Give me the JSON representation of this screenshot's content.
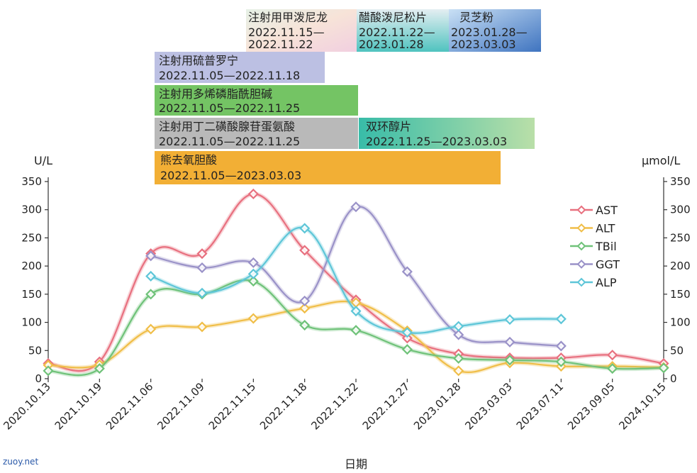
{
  "watermark": "zuoy.net",
  "chart_data": {
    "type": "line",
    "xlabel": "日期",
    "ylabel_left": "U/L",
    "ylabel_right": "μmol/L",
    "ylim": [
      0,
      350
    ],
    "yticks": [
      0,
      50,
      100,
      150,
      200,
      250,
      300,
      350
    ],
    "categories": [
      "2020.10.13",
      "2021.10.19",
      "2022.11.06",
      "2022.11.09",
      "2022.11.15",
      "2022.11.18",
      "2022.11.22",
      "2022.12.27",
      "2023.01.28",
      "2023.03.03",
      "2023.07.11",
      "2023.09.05",
      "2024.10.15"
    ],
    "legend_position": "right",
    "series": [
      {
        "name": "AST",
        "color": "#e8707f",
        "values": [
          27,
          30,
          222,
          222,
          328,
          228,
          140,
          72,
          44,
          37,
          37,
          42,
          27
        ]
      },
      {
        "name": "ALT",
        "color": "#f0be48",
        "values": [
          24,
          25,
          88,
          92,
          107,
          125,
          135,
          85,
          14,
          28,
          22,
          22,
          20
        ]
      },
      {
        "name": "TBil",
        "color": "#6fc279",
        "values": [
          14,
          18,
          150,
          150,
          173,
          95,
          86,
          52,
          36,
          33,
          30,
          18,
          19
        ]
      },
      {
        "name": "GGT",
        "color": "#9a92c8",
        "values": [
          null,
          null,
          218,
          197,
          206,
          138,
          305,
          190,
          78,
          65,
          58,
          null,
          null
        ]
      },
      {
        "name": "ALP",
        "color": "#5ec6d8",
        "values": [
          null,
          null,
          182,
          152,
          186,
          267,
          120,
          82,
          93,
          105,
          106,
          null,
          null
        ]
      }
    ],
    "medications": [
      {
        "name": "注射用甲泼尼龙",
        "date": "2022.11.15—2022.11.22",
        "date_line1": "2022.11.15—",
        "date_line2": "2022.11.22"
      },
      {
        "name": "醋酸泼尼松片",
        "date": "2022.11.22—2023.01.28",
        "date_line1": "2022.11.22—",
        "date_line2": "2023.01.28"
      },
      {
        "name": "灵芝粉",
        "date": "2023.01.28—2023.03.03",
        "date_line1": "2023.01.28—",
        "date_line2": "2023.03.03"
      },
      {
        "name": "注射用硫普罗宁",
        "date": "2022.11.05—2022.11.18"
      },
      {
        "name": "注射用多烯磷脂酰胆碱",
        "date": "2022.11.05—2022.11.25"
      },
      {
        "name": "注射用丁二磺酸腺苷蛋氨酸",
        "date": "2022.11.05—2022.11.25"
      },
      {
        "name": "双环醇片",
        "date": "2022.11.25—2023.03.03"
      },
      {
        "name": "熊去氧胆酸",
        "date": "2022.11.05—2023.03.03"
      }
    ]
  }
}
